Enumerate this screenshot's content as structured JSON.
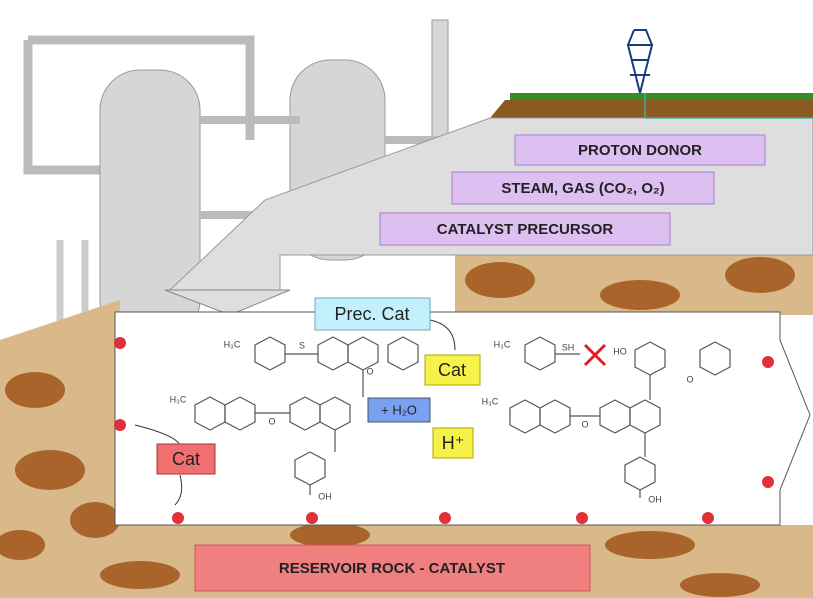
{
  "labels": {
    "proton_donor": "PROTON DONOR",
    "steam_gas": "STEAM, GAS (CO₂, O₂)",
    "catalyst_precursor": "CATALYST PRECURSOR",
    "prec_cat": "Prec. Cat",
    "cat_top": "Cat",
    "water": "+ H₂O",
    "proton": "H⁺",
    "cat_left": "Cat",
    "reservoir": "RESERVOIR ROCK - CATALYST"
  },
  "molecule": {
    "left_methyl_top": "H₃C",
    "left_sulfur": "S",
    "left_oxygen_ring": "O",
    "left_methyl_mid": "H₃C",
    "left_ether": "O",
    "left_acid": "OH",
    "right_methyl_top": "H₃C",
    "right_thiol": "SH",
    "right_hydroxyl": "HO",
    "right_oxygen_ring": "O",
    "right_methyl_mid": "H₃C",
    "right_ether": "O",
    "right_acid": "OH"
  }
}
